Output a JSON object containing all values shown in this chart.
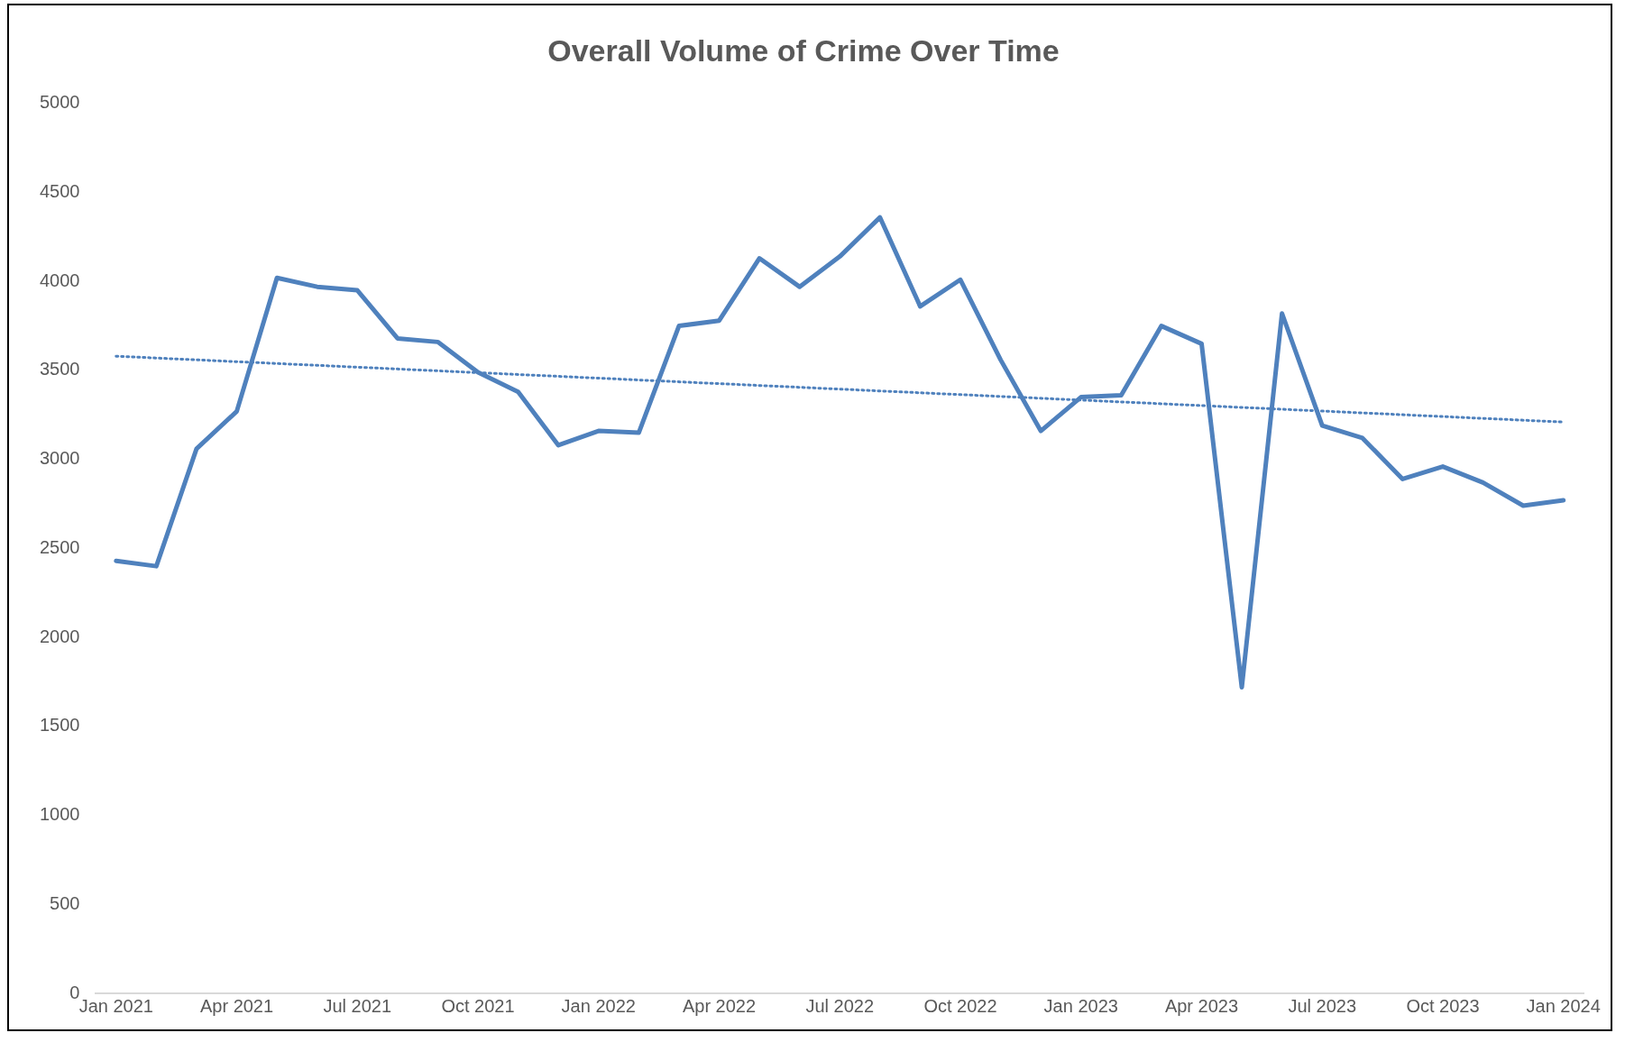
{
  "chart_data": {
    "type": "line",
    "title": "Overall Volume of Crime Over Time",
    "marker": "none",
    "grid": false,
    "legend": false,
    "x": [
      "2021-01",
      "2021-02",
      "2021-03",
      "2021-04",
      "2021-05",
      "2021-06",
      "2021-07",
      "2021-08",
      "2021-09",
      "2021-10",
      "2021-11",
      "2021-12",
      "2022-01",
      "2022-02",
      "2022-03",
      "2022-04",
      "2022-05",
      "2022-06",
      "2022-07",
      "2022-08",
      "2022-09",
      "2022-10",
      "2022-11",
      "2022-12",
      "2023-01",
      "2023-02",
      "2023-03",
      "2023-04",
      "2023-05",
      "2023-06",
      "2023-07",
      "2023-08",
      "2023-09",
      "2023-10",
      "2023-11",
      "2023-12",
      "2024-01"
    ],
    "xlim": [
      "2020-12-16",
      "2024-01-16"
    ],
    "xticks": [
      {
        "value": "2021-01",
        "label": "Jan 2021"
      },
      {
        "value": "2021-04",
        "label": "Apr 2021"
      },
      {
        "value": "2021-07",
        "label": "Jul 2021"
      },
      {
        "value": "2021-10",
        "label": "Oct 2021"
      },
      {
        "value": "2022-01",
        "label": "Jan 2022"
      },
      {
        "value": "2022-04",
        "label": "Apr 2022"
      },
      {
        "value": "2022-07",
        "label": "Jul 2022"
      },
      {
        "value": "2022-10",
        "label": "Oct 2022"
      },
      {
        "value": "2023-01",
        "label": "Jan 2023"
      },
      {
        "value": "2023-04",
        "label": "Apr 2023"
      },
      {
        "value": "2023-07",
        "label": "Jul 2023"
      },
      {
        "value": "2023-10",
        "label": "Oct 2023"
      },
      {
        "value": "2024-01",
        "label": "Jan 2024"
      }
    ],
    "ylim": [
      0,
      5000
    ],
    "yticks": [
      0,
      500,
      1000,
      1500,
      2000,
      2500,
      3000,
      3500,
      4000,
      4500,
      5000
    ],
    "series": [
      {
        "color": "#4f81bd",
        "line_style": "solid",
        "values": [
          2430,
          2400,
          3060,
          3270,
          4020,
          3970,
          3950,
          3680,
          3660,
          3490,
          3380,
          3080,
          3160,
          3150,
          3750,
          3780,
          4130,
          3970,
          4140,
          4360,
          3860,
          4010,
          3560,
          3160,
          3350,
          3360,
          3750,
          3650,
          1720,
          3820,
          3190,
          3120,
          2890,
          2960,
          2870,
          2740,
          2770
        ]
      },
      {
        "type": "line",
        "color": "#4f81bd",
        "line_style": "dotted",
        "x": [
          "2021-01",
          "2024-01"
        ],
        "values": [
          3580,
          3210
        ]
      }
    ]
  }
}
